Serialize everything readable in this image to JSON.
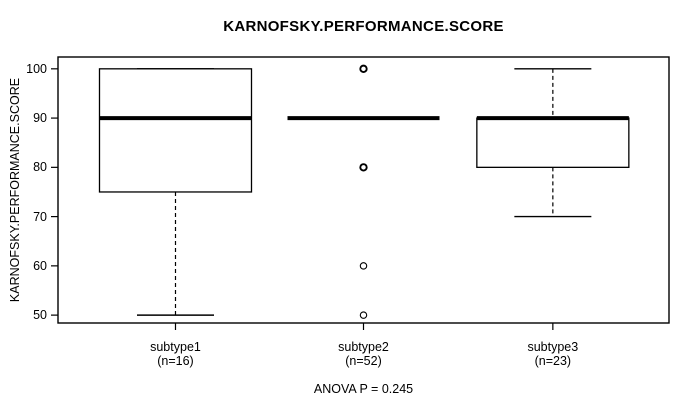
{
  "chart_data": {
    "type": "boxplot",
    "title": "KARNOFSKY.PERFORMANCE.SCORE",
    "ylabel": "KARNOFSKY.PERFORMANCE.SCORE",
    "xlabel": "",
    "ylim": [
      48.4,
      102.4
    ],
    "yticks": [
      50,
      60,
      70,
      80,
      90,
      100
    ],
    "grid": false,
    "legend": "none",
    "annotation": "ANOVA P = 0.245",
    "line_color": "#000000",
    "background_color": "#ffffff",
    "groups": [
      {
        "label": "subtype1",
        "sublabel": "(n=16)",
        "n": 16,
        "q1": 75,
        "median": 90,
        "q3": 100,
        "whisker_low": 50,
        "whisker_high": 100,
        "outliers": []
      },
      {
        "label": "subtype2",
        "sublabel": "(n=52)",
        "n": 52,
        "q1": 90,
        "median": 90,
        "q3": 90,
        "whisker_low": 90,
        "whisker_high": 90,
        "outliers": [
          {
            "value": 100,
            "heavy": true
          },
          {
            "value": 80,
            "heavy": true
          },
          {
            "value": 60,
            "heavy": false
          },
          {
            "value": 50,
            "heavy": false
          }
        ]
      },
      {
        "label": "subtype3",
        "sublabel": "(n=23)",
        "n": 23,
        "q1": 80,
        "median": 90,
        "q3": 90,
        "whisker_low": 70,
        "whisker_high": 100,
        "outliers": []
      }
    ]
  }
}
